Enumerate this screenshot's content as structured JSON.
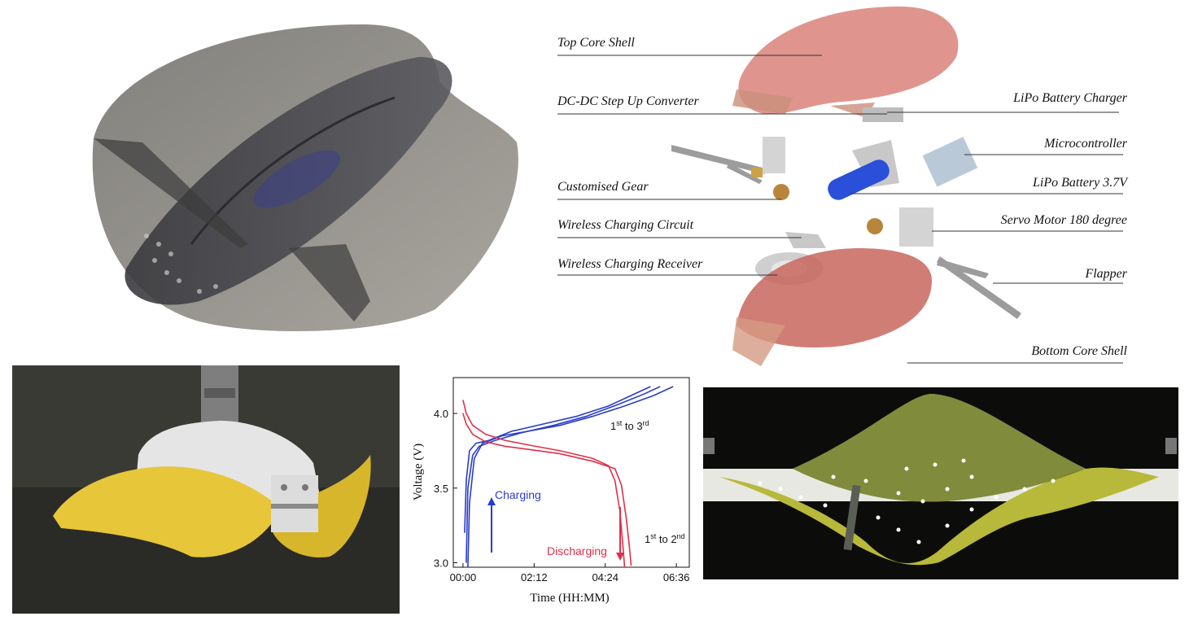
{
  "exploded_labels": {
    "top_core_shell": "Top Core Shell",
    "dc_dc": "DC-DC Step Up Converter",
    "lipo_charger": "LiPo Battery Charger",
    "microcontroller": "Microcontroller",
    "customised_gear": "Customised Gear",
    "lipo_battery": "LiPo Battery 3.7V",
    "wireless_circuit": "Wireless Charging Circuit",
    "servo_motor": "Servo Motor 180 degree",
    "wireless_receiver": "Wireless Charging Receiver",
    "flapper": "Flapper",
    "bottom_core_shell": "Bottom Core Shell"
  },
  "colors": {
    "shell_red": "#d9827a",
    "fin_gray": "#7d7a73",
    "fin_yellow": "#d9c23a",
    "charge_blue": "#2a3cc8",
    "discharge_red": "#e0304a"
  },
  "chart_data": {
    "type": "line",
    "xlabel": "Time (HH:MM)",
    "ylabel": "Voltage (V)",
    "x_tick_labels": [
      "00:00",
      "02:12",
      "04:24",
      "06:36"
    ],
    "x_ticks_hours": [
      0,
      2.2,
      4.4,
      6.6
    ],
    "xlim_hours": [
      -0.3,
      7.0
    ],
    "y_tick_labels": [
      "3.0",
      "3.5",
      "4.0"
    ],
    "y_ticks": [
      3.0,
      3.5,
      4.0
    ],
    "ylim": [
      2.97,
      4.24
    ],
    "annotations": {
      "charging": "Charging",
      "discharging": "Discharging",
      "charge_cycles_base": "1",
      "charge_cycles_sup1": "st",
      "charge_cycles_mid": " to 3",
      "charge_cycles_sup2": "rd",
      "discharge_cycles_base": "1",
      "discharge_cycles_sup1": "st",
      "discharge_cycles_mid": " to 2",
      "discharge_cycles_sup2": "nd"
    },
    "series": [
      {
        "kind": "charge",
        "color": "#2a3cc8",
        "x": [
          0.05,
          0.1,
          0.2,
          0.4,
          0.8,
          1.5,
          2.5,
          3.5,
          4.5,
          5.2,
          5.8
        ],
        "y": [
          3.2,
          3.55,
          3.75,
          3.8,
          3.82,
          3.88,
          3.93,
          3.98,
          4.05,
          4.12,
          4.18
        ]
      },
      {
        "kind": "charge",
        "color": "#2a3cc8",
        "x": [
          0.1,
          0.15,
          0.3,
          0.5,
          1.0,
          1.8,
          2.8,
          3.8,
          4.8,
          5.6,
          6.1
        ],
        "y": [
          3.0,
          3.5,
          3.72,
          3.78,
          3.82,
          3.87,
          3.92,
          3.98,
          4.06,
          4.13,
          4.18
        ]
      },
      {
        "kind": "charge",
        "color": "#2a3cc8",
        "x": [
          0.15,
          0.2,
          0.35,
          0.6,
          1.2,
          2.0,
          3.0,
          4.0,
          5.0,
          5.9,
          6.5
        ],
        "y": [
          2.97,
          3.4,
          3.7,
          3.8,
          3.85,
          3.88,
          3.92,
          3.98,
          4.05,
          4.12,
          4.18
        ]
      },
      {
        "kind": "discharge",
        "color": "#e0304a",
        "x": [
          0.0,
          0.1,
          0.3,
          0.7,
          1.3,
          2.0,
          3.0,
          4.0,
          4.5,
          4.7,
          4.85,
          4.95,
          5.0
        ],
        "y": [
          4.09,
          4.0,
          3.92,
          3.86,
          3.82,
          3.79,
          3.75,
          3.7,
          3.65,
          3.55,
          3.35,
          3.1,
          2.97
        ]
      },
      {
        "kind": "discharge",
        "color": "#e0304a",
        "x": [
          0.0,
          0.1,
          0.3,
          0.7,
          1.3,
          2.0,
          3.0,
          4.0,
          4.7,
          4.9,
          5.05,
          5.15,
          5.2
        ],
        "y": [
          4.0,
          3.93,
          3.86,
          3.81,
          3.78,
          3.76,
          3.73,
          3.68,
          3.63,
          3.52,
          3.3,
          3.1,
          2.98
        ]
      }
    ]
  }
}
